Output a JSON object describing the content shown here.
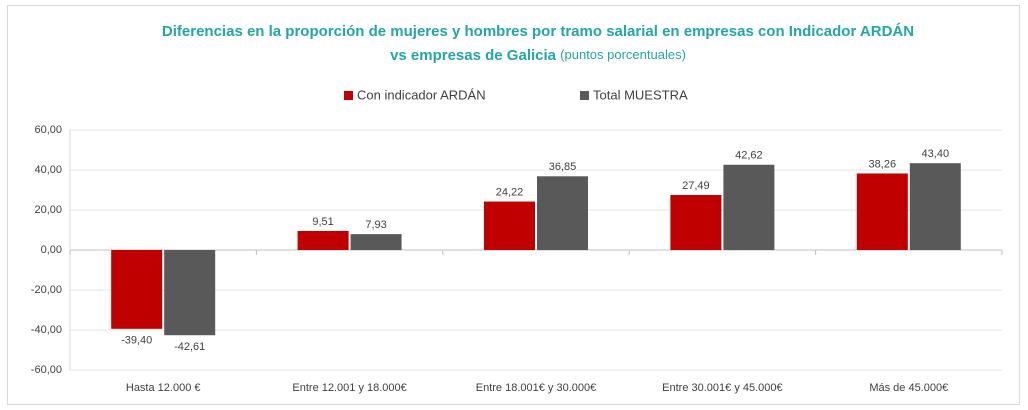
{
  "chart_data": {
    "type": "bar",
    "title": [
      "Diferencias en la proporción de mujeres y hombres por tramo salarial en empresas con Indicador ARDÁN",
      "vs empresas de Galicia"
    ],
    "subtitle": "(puntos porcentuales)",
    "categories": [
      "Hasta 12.000 €",
      "Entre 12.001 y 18.000€",
      "Entre 18.001€ y 30.000€",
      "Entre 30.001€ y 45.000€",
      "Más de 45.000€"
    ],
    "series": [
      {
        "name": "Con indicador ARDÁN",
        "color": "#c00000",
        "values": [
          -39.4,
          9.51,
          24.22,
          27.49,
          38.26
        ],
        "value_labels": [
          "-39,40",
          "9,51",
          "24,22",
          "27,49",
          "38,26"
        ]
      },
      {
        "name": "Total MUESTRA",
        "color": "#595959",
        "values": [
          -42.61,
          7.93,
          36.85,
          42.62,
          43.4
        ],
        "value_labels": [
          "-42,61",
          "7,93",
          "36,85",
          "42,62",
          "43,40"
        ]
      }
    ],
    "ylim": [
      -60,
      60
    ],
    "yticks": [
      {
        "value": -60,
        "label": "-60,00"
      },
      {
        "value": -40,
        "label": "-40,00"
      },
      {
        "value": -20,
        "label": "-20,00"
      },
      {
        "value": 0,
        "label": "0,00"
      },
      {
        "value": 20,
        "label": "20,00"
      },
      {
        "value": 40,
        "label": "40,00"
      },
      {
        "value": 60,
        "label": "60,00"
      }
    ],
    "grid": true,
    "legend": "top"
  }
}
